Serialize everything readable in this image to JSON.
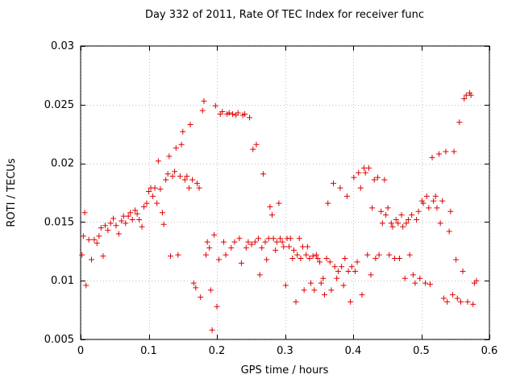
{
  "chart_data": {
    "type": "scatter",
    "title": "Day 332 of 2011, Rate Of TEC Index for receiver func",
    "xlabel": "GPS time / hours",
    "ylabel": "ROTI / TECUs",
    "xlim": [
      0,
      0.6
    ],
    "ylim": [
      0.005,
      0.03
    ],
    "x_ticks": [
      0,
      0.1,
      0.2,
      0.3,
      0.4,
      0.5,
      0.6
    ],
    "x_tick_labels": [
      "0",
      "0.1",
      "0.2",
      "0.3",
      "0.4",
      "0.5",
      "0.6"
    ],
    "y_ticks": [
      0.005,
      0.01,
      0.015,
      0.02,
      0.025,
      0.03
    ],
    "y_tick_labels": [
      "0.005",
      "0.01",
      "0.015",
      "0.02",
      "0.025",
      "0.03"
    ],
    "grid": true,
    "legend": "none",
    "marker": "plus",
    "marker_color": "#e00000",
    "grid_color": "#c0c0c0",
    "axis_color": "#000000",
    "points": [
      [
        0.002,
        0.0122
      ],
      [
        0.004,
        0.0138
      ],
      [
        0.006,
        0.0158
      ],
      [
        0.008,
        0.0096
      ],
      [
        0.012,
        0.0135
      ],
      [
        0.016,
        0.0118
      ],
      [
        0.02,
        0.0135
      ],
      [
        0.024,
        0.0132
      ],
      [
        0.027,
        0.0138
      ],
      [
        0.03,
        0.0145
      ],
      [
        0.033,
        0.0121
      ],
      [
        0.036,
        0.0147
      ],
      [
        0.04,
        0.0143
      ],
      [
        0.044,
        0.0149
      ],
      [
        0.048,
        0.0153
      ],
      [
        0.052,
        0.0147
      ],
      [
        0.056,
        0.014
      ],
      [
        0.06,
        0.0151
      ],
      [
        0.063,
        0.0155
      ],
      [
        0.066,
        0.0149
      ],
      [
        0.07,
        0.0155
      ],
      [
        0.073,
        0.0158
      ],
      [
        0.076,
        0.0152
      ],
      [
        0.08,
        0.016
      ],
      [
        0.083,
        0.0157
      ],
      [
        0.086,
        0.0152
      ],
      [
        0.09,
        0.0146
      ],
      [
        0.093,
        0.0163
      ],
      [
        0.097,
        0.0166
      ],
      [
        0.1,
        0.0176
      ],
      [
        0.103,
        0.0179
      ],
      [
        0.106,
        0.0172
      ],
      [
        0.109,
        0.0179
      ],
      [
        0.112,
        0.0166
      ],
      [
        0.114,
        0.0202
      ],
      [
        0.117,
        0.0178
      ],
      [
        0.12,
        0.0158
      ],
      [
        0.122,
        0.0148
      ],
      [
        0.125,
        0.0186
      ],
      [
        0.128,
        0.0191
      ],
      [
        0.13,
        0.0206
      ],
      [
        0.132,
        0.0121
      ],
      [
        0.135,
        0.0189
      ],
      [
        0.138,
        0.0193
      ],
      [
        0.14,
        0.0213
      ],
      [
        0.143,
        0.0122
      ],
      [
        0.146,
        0.0189
      ],
      [
        0.148,
        0.0216
      ],
      [
        0.15,
        0.0227
      ],
      [
        0.153,
        0.0186
      ],
      [
        0.156,
        0.0189
      ],
      [
        0.159,
        0.0179
      ],
      [
        0.161,
        0.0233
      ],
      [
        0.164,
        0.0186
      ],
      [
        0.166,
        0.0098
      ],
      [
        0.169,
        0.0094
      ],
      [
        0.171,
        0.0183
      ],
      [
        0.174,
        0.0179
      ],
      [
        0.176,
        0.0086
      ],
      [
        0.179,
        0.0245
      ],
      [
        0.181,
        0.0253
      ],
      [
        0.184,
        0.0122
      ],
      [
        0.186,
        0.0133
      ],
      [
        0.189,
        0.0128
      ],
      [
        0.191,
        0.0092
      ],
      [
        0.193,
        0.0058
      ],
      [
        0.196,
        0.0139
      ],
      [
        0.198,
        0.0249
      ],
      [
        0.2,
        0.0078
      ],
      [
        0.203,
        0.0118
      ],
      [
        0.205,
        0.0242
      ],
      [
        0.208,
        0.0244
      ],
      [
        0.21,
        0.0133
      ],
      [
        0.213,
        0.0122
      ],
      [
        0.215,
        0.0242
      ],
      [
        0.218,
        0.0243
      ],
      [
        0.221,
        0.0128
      ],
      [
        0.223,
        0.0242
      ],
      [
        0.226,
        0.0133
      ],
      [
        0.228,
        0.0241
      ],
      [
        0.231,
        0.0243
      ],
      [
        0.233,
        0.0136
      ],
      [
        0.236,
        0.0115
      ],
      [
        0.238,
        0.0241
      ],
      [
        0.241,
        0.0242
      ],
      [
        0.243,
        0.0128
      ],
      [
        0.246,
        0.0133
      ],
      [
        0.248,
        0.0239
      ],
      [
        0.251,
        0.0131
      ],
      [
        0.253,
        0.0212
      ],
      [
        0.256,
        0.0133
      ],
      [
        0.258,
        0.0216
      ],
      [
        0.261,
        0.0136
      ],
      [
        0.263,
        0.0105
      ],
      [
        0.266,
        0.0128
      ],
      [
        0.268,
        0.0191
      ],
      [
        0.271,
        0.0133
      ],
      [
        0.273,
        0.0118
      ],
      [
        0.276,
        0.0136
      ],
      [
        0.278,
        0.0163
      ],
      [
        0.281,
        0.0156
      ],
      [
        0.283,
        0.0136
      ],
      [
        0.286,
        0.0126
      ],
      [
        0.288,
        0.0133
      ],
      [
        0.291,
        0.0166
      ],
      [
        0.293,
        0.0136
      ],
      [
        0.296,
        0.0133
      ],
      [
        0.298,
        0.0129
      ],
      [
        0.301,
        0.0096
      ],
      [
        0.303,
        0.0136
      ],
      [
        0.306,
        0.0129
      ],
      [
        0.308,
        0.0136
      ],
      [
        0.311,
        0.0119
      ],
      [
        0.313,
        0.0126
      ],
      [
        0.316,
        0.0082
      ],
      [
        0.318,
        0.0122
      ],
      [
        0.321,
        0.0136
      ],
      [
        0.323,
        0.0119
      ],
      [
        0.326,
        0.0129
      ],
      [
        0.328,
        0.0092
      ],
      [
        0.331,
        0.0122
      ],
      [
        0.333,
        0.0129
      ],
      [
        0.336,
        0.0119
      ],
      [
        0.338,
        0.0098
      ],
      [
        0.341,
        0.0121
      ],
      [
        0.343,
        0.0092
      ],
      [
        0.346,
        0.0122
      ],
      [
        0.348,
        0.0119
      ],
      [
        0.351,
        0.0116
      ],
      [
        0.353,
        0.0098
      ],
      [
        0.356,
        0.0102
      ],
      [
        0.358,
        0.0088
      ],
      [
        0.361,
        0.0119
      ],
      [
        0.363,
        0.0166
      ],
      [
        0.366,
        0.0116
      ],
      [
        0.368,
        0.0092
      ],
      [
        0.371,
        0.0183
      ],
      [
        0.373,
        0.0112
      ],
      [
        0.376,
        0.0102
      ],
      [
        0.378,
        0.0108
      ],
      [
        0.381,
        0.0179
      ],
      [
        0.383,
        0.0112
      ],
      [
        0.386,
        0.0096
      ],
      [
        0.388,
        0.0119
      ],
      [
        0.391,
        0.0172
      ],
      [
        0.393,
        0.0108
      ],
      [
        0.396,
        0.0082
      ],
      [
        0.398,
        0.0112
      ],
      [
        0.401,
        0.0188
      ],
      [
        0.403,
        0.0108
      ],
      [
        0.406,
        0.0116
      ],
      [
        0.408,
        0.0192
      ],
      [
        0.411,
        0.0179
      ],
      [
        0.413,
        0.0088
      ],
      [
        0.416,
        0.0196
      ],
      [
        0.418,
        0.0192
      ],
      [
        0.421,
        0.0122
      ],
      [
        0.423,
        0.0196
      ],
      [
        0.426,
        0.0105
      ],
      [
        0.428,
        0.0162
      ],
      [
        0.431,
        0.0186
      ],
      [
        0.433,
        0.0119
      ],
      [
        0.436,
        0.0188
      ],
      [
        0.438,
        0.0122
      ],
      [
        0.441,
        0.0159
      ],
      [
        0.443,
        0.0149
      ],
      [
        0.446,
        0.0186
      ],
      [
        0.448,
        0.0156
      ],
      [
        0.451,
        0.0162
      ],
      [
        0.453,
        0.0122
      ],
      [
        0.456,
        0.0149
      ],
      [
        0.458,
        0.0146
      ],
      [
        0.461,
        0.0119
      ],
      [
        0.463,
        0.0152
      ],
      [
        0.466,
        0.0149
      ],
      [
        0.468,
        0.0119
      ],
      [
        0.471,
        0.0156
      ],
      [
        0.473,
        0.0146
      ],
      [
        0.476,
        0.0102
      ],
      [
        0.478,
        0.0149
      ],
      [
        0.481,
        0.0152
      ],
      [
        0.483,
        0.0122
      ],
      [
        0.486,
        0.0156
      ],
      [
        0.488,
        0.0105
      ],
      [
        0.491,
        0.0098
      ],
      [
        0.493,
        0.0152
      ],
      [
        0.496,
        0.0159
      ],
      [
        0.498,
        0.0102
      ],
      [
        0.501,
        0.0168
      ],
      [
        0.503,
        0.0166
      ],
      [
        0.506,
        0.0098
      ],
      [
        0.508,
        0.0172
      ],
      [
        0.511,
        0.0162
      ],
      [
        0.513,
        0.0097
      ],
      [
        0.516,
        0.0205
      ],
      [
        0.518,
        0.0168
      ],
      [
        0.521,
        0.0172
      ],
      [
        0.523,
        0.0162
      ],
      [
        0.526,
        0.0208
      ],
      [
        0.528,
        0.0149
      ],
      [
        0.531,
        0.0168
      ],
      [
        0.533,
        0.0085
      ],
      [
        0.536,
        0.021
      ],
      [
        0.538,
        0.0082
      ],
      [
        0.541,
        0.0142
      ],
      [
        0.543,
        0.0159
      ],
      [
        0.546,
        0.0088
      ],
      [
        0.548,
        0.021
      ],
      [
        0.551,
        0.0118
      ],
      [
        0.553,
        0.0085
      ],
      [
        0.556,
        0.0235
      ],
      [
        0.558,
        0.0082
      ],
      [
        0.561,
        0.0108
      ],
      [
        0.563,
        0.0255
      ],
      [
        0.566,
        0.0258
      ],
      [
        0.568,
        0.0082
      ],
      [
        0.571,
        0.026
      ],
      [
        0.573,
        0.0258
      ],
      [
        0.576,
        0.008
      ],
      [
        0.578,
        0.0098
      ],
      [
        0.581,
        0.01
      ]
    ]
  }
}
